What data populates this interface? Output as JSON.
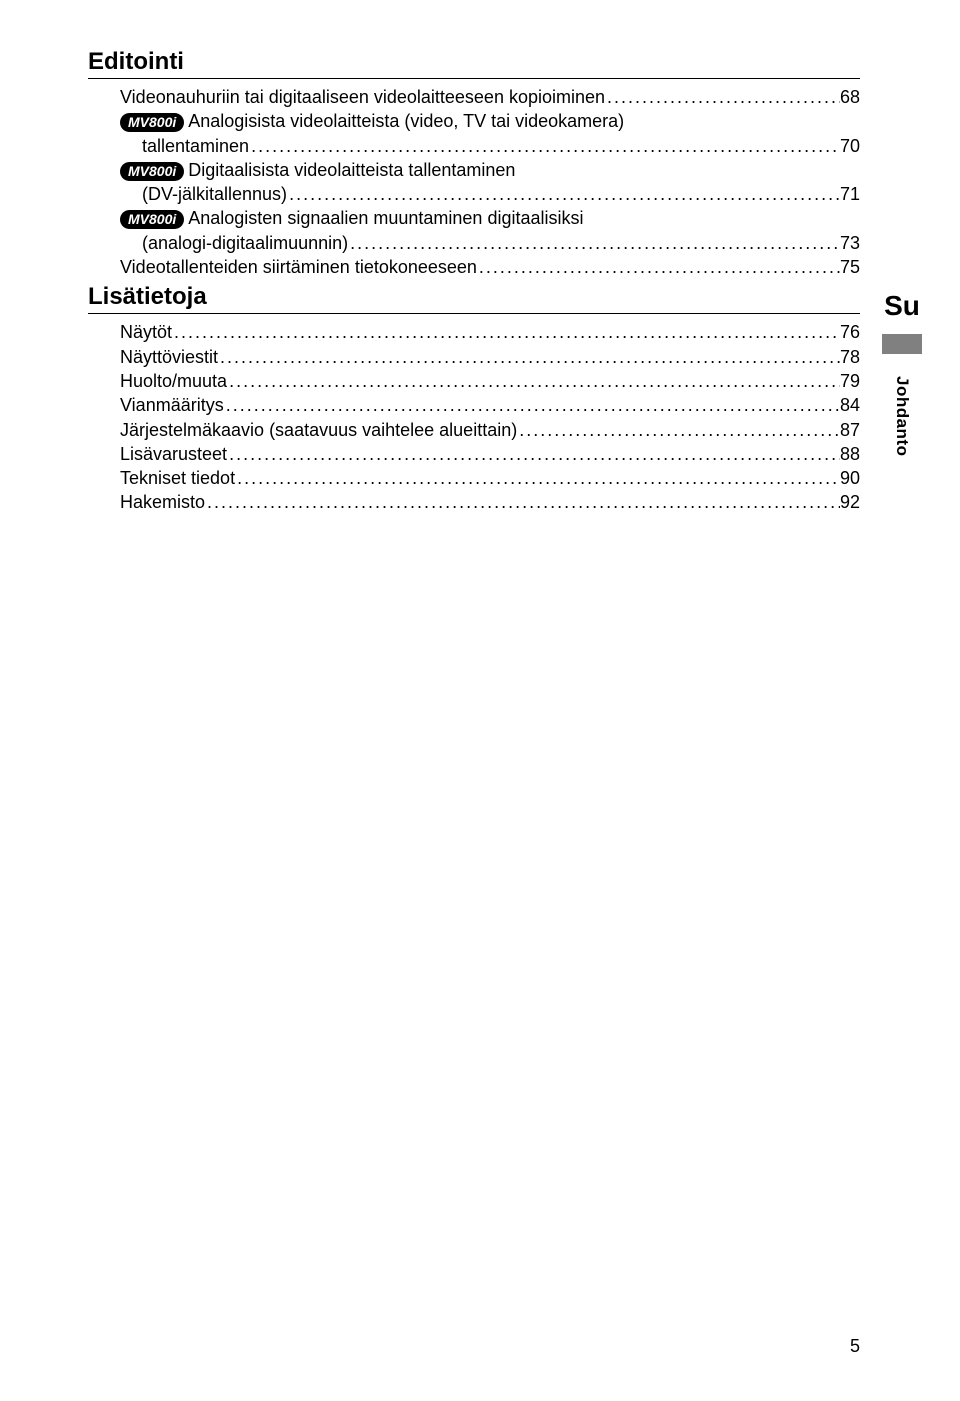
{
  "sections": [
    {
      "heading": "Editointi",
      "entries": [
        {
          "label": "Videonauhuriin tai digitaaliseen videolaitteeseen kopioiminen",
          "page": "68",
          "sub": false
        },
        {
          "badge": "MV800i",
          "label": "Analogisista videolaitteista (video, TV tai videokamera)",
          "label2": "tallentaminen",
          "page": "70",
          "sub": false
        },
        {
          "badge": "MV800i",
          "label": "Digitaalisista videolaitteista tallentaminen",
          "label2": "(DV-jälkitallennus)",
          "page": "71",
          "sub": false
        },
        {
          "badge": "MV800i",
          "label": "Analogisten signaalien muuntaminen digitaalisiksi",
          "label2": "(analogi-digitaalimuunnin)",
          "page": "73",
          "sub": false
        },
        {
          "label": "Videotallenteiden siirtäminen tietokoneeseen",
          "page": "75",
          "sub": false
        }
      ]
    },
    {
      "heading": "Lisätietoja",
      "entries": [
        {
          "label": "Näytöt",
          "page": "76",
          "sub": false
        },
        {
          "label": "Näyttöviestit",
          "page": "78",
          "sub": false
        },
        {
          "label": "Huolto/muuta",
          "page": "79",
          "sub": false
        },
        {
          "label": "Vianmääritys",
          "page": "84",
          "sub": false
        },
        {
          "label": "Järjestelmäkaavio (saatavuus vaihtelee alueittain)",
          "page": "87",
          "sub": false
        },
        {
          "label": "Lisävarusteet",
          "page": "88",
          "sub": false
        },
        {
          "label": "Tekniset tiedot",
          "page": "90",
          "sub": false
        },
        {
          "label": "Hakemisto",
          "page": "92",
          "sub": false
        }
      ]
    }
  ],
  "sidebar": {
    "lang": "Su",
    "section": "Johdanto"
  },
  "footer": {
    "pagenum": "5"
  },
  "colors": {
    "text": "#000000",
    "background": "#ffffff",
    "badge_bg": "#000000",
    "badge_fg": "#ffffff",
    "tab_gray": "#808080"
  },
  "typography": {
    "heading_size": 24,
    "body_size": 18,
    "badge_size": 14,
    "side_lang_size": 28,
    "side_label_size": 17,
    "font_family": "Arial"
  }
}
